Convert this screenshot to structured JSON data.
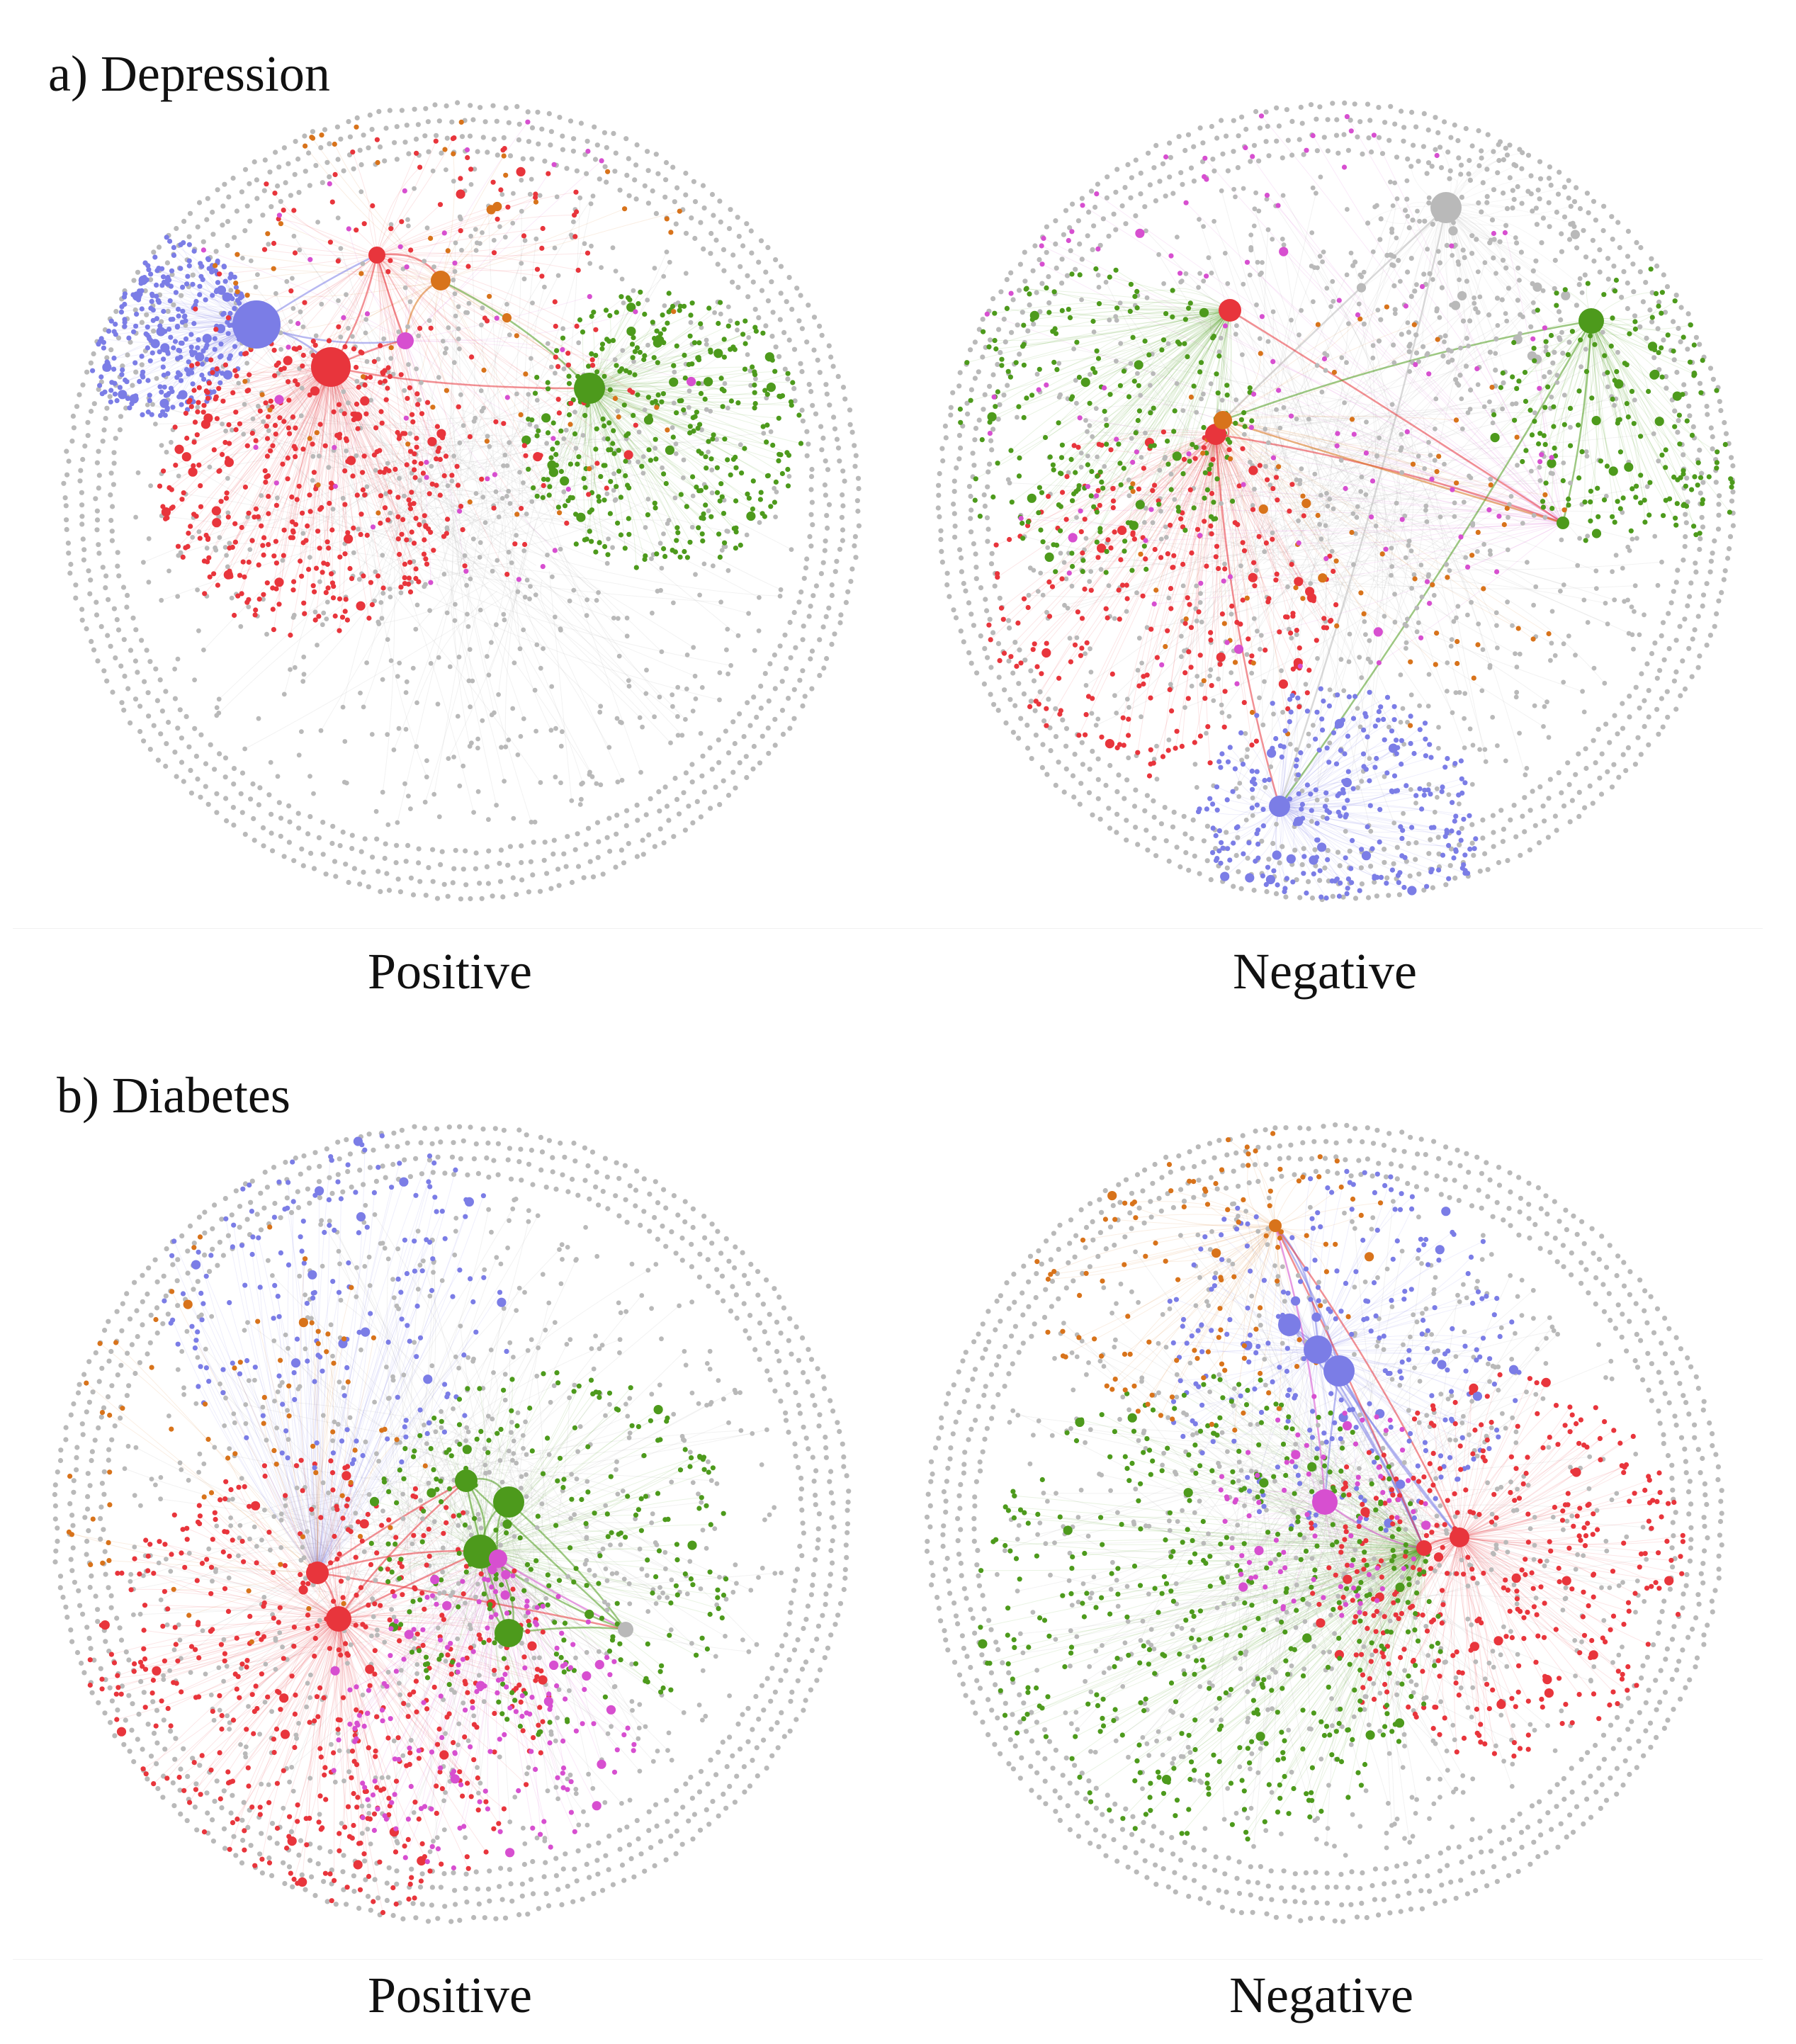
{
  "panels": {
    "a": {
      "title": "a) Depression",
      "positive_label": "Positive",
      "negative_label": "Negative"
    },
    "b": {
      "title": "b) Diabetes",
      "positive_label": "Positive",
      "negative_label": "Negative"
    }
  },
  "colors": {
    "gray": "#b9b9b9",
    "red": "#e8353c",
    "blue": "#7b7de6",
    "green": "#4d9a1c",
    "orange": "#d8731b",
    "magenta": "#d74fd0"
  },
  "networks": {
    "a_positive": {
      "hubs": [
        {
          "color": "blue"
        },
        {
          "color": "red"
        },
        {
          "color": "green"
        },
        {
          "color": "red"
        },
        {
          "color": "orange"
        },
        {
          "color": "magenta"
        }
      ]
    },
    "a_negative": {
      "hubs": [
        {
          "color": "gray"
        },
        {
          "color": "red"
        },
        {
          "color": "green"
        },
        {
          "color": "red"
        },
        {
          "color": "orange"
        },
        {
          "color": "blue"
        },
        {
          "color": "green"
        }
      ]
    },
    "b_positive": {
      "hubs": [
        {
          "color": "red"
        },
        {
          "color": "red"
        },
        {
          "color": "green"
        },
        {
          "color": "green"
        },
        {
          "color": "green"
        },
        {
          "color": "green"
        },
        {
          "color": "magenta"
        },
        {
          "color": "gray"
        }
      ]
    },
    "b_negative": {
      "hubs": [
        {
          "color": "blue"
        },
        {
          "color": "blue"
        },
        {
          "color": "blue"
        },
        {
          "color": "magenta"
        },
        {
          "color": "red"
        },
        {
          "color": "red"
        },
        {
          "color": "orange"
        }
      ]
    }
  }
}
